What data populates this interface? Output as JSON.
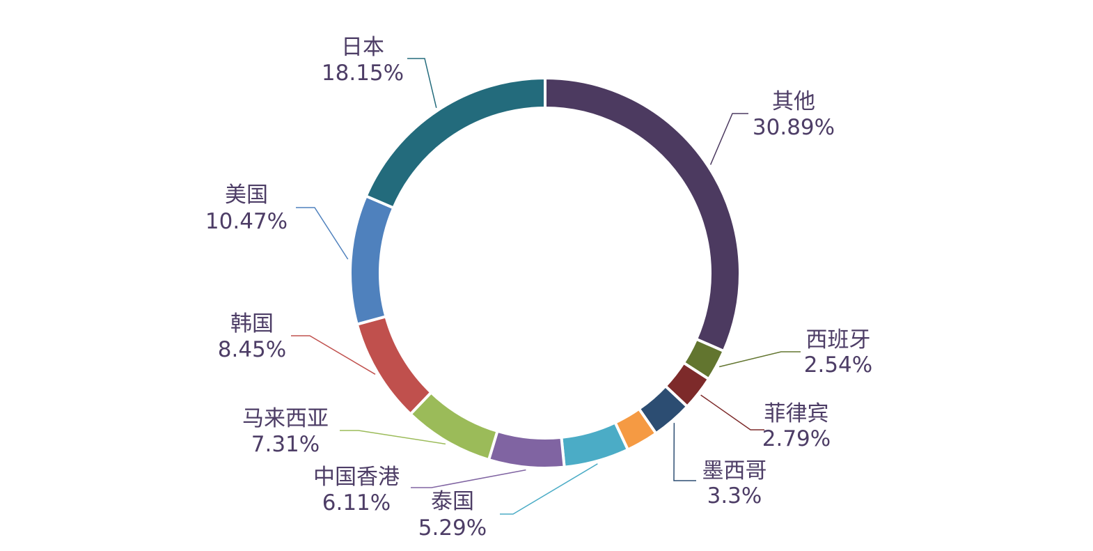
{
  "chart_data": {
    "type": "pie",
    "variant": "donut",
    "series": [
      {
        "name": "其他",
        "value": 30.89,
        "label": "30.89%",
        "color": "#4c3a60"
      },
      {
        "name": "西班牙",
        "value": 2.54,
        "label": "2.54%",
        "color": "#62752f"
      },
      {
        "name": "菲律宾",
        "value": 2.79,
        "label": "2.79%",
        "color": "#7d2a2a"
      },
      {
        "name": "墨西哥",
        "value": 3.3,
        "label": "3.3%",
        "color": "#2c4d72"
      },
      {
        "name": "",
        "value": 2.6,
        "label": "",
        "color": "#f59a43"
      },
      {
        "name": "泰国",
        "value": 5.29,
        "label": "5.29%",
        "color": "#4bacc6"
      },
      {
        "name": "中国香港",
        "value": 6.11,
        "label": "6.11%",
        "color": "#8064a2"
      },
      {
        "name": "马来西亚",
        "value": 7.31,
        "label": "7.31%",
        "color": "#9bbb59"
      },
      {
        "name": "韩国",
        "value": 8.45,
        "label": "8.45%",
        "color": "#c0504d"
      },
      {
        "name": "美国",
        "value": 10.47,
        "label": "10.47%",
        "color": "#4f81bd"
      },
      {
        "name": "日本",
        "value": 18.15,
        "label": "18.15%",
        "color": "#236b7c"
      }
    ],
    "start_angle": "12 o'clock",
    "direction": "clockwise",
    "legend": "none",
    "label_color": "#4d3d66"
  }
}
